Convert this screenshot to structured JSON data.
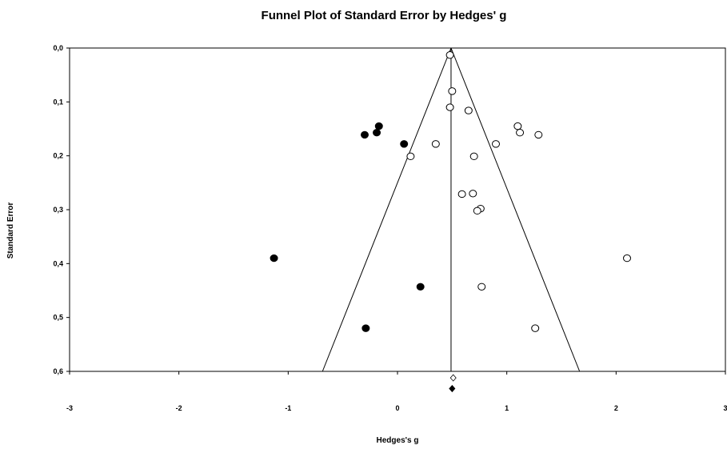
{
  "chart_data": {
    "type": "scatter",
    "title": "Funnel Plot of Standard Error by Hedges' g",
    "xlabel": "Hedges's g",
    "ylabel": "Standard Error",
    "xlim": [
      -3,
      3
    ],
    "ylim": [
      0.0,
      0.6
    ],
    "y_inverted": true,
    "x_ticks": [
      -3,
      -2,
      -1,
      0,
      1,
      2,
      3
    ],
    "x_tick_labels": [
      "-3",
      "-2",
      "-1",
      "0",
      "1",
      "2",
      "3"
    ],
    "y_ticks": [
      0.0,
      0.1,
      0.2,
      0.3,
      0.4,
      0.5,
      0.6
    ],
    "y_tick_labels": [
      "0,0",
      "0,1",
      "0,2",
      "0,3",
      "0,4",
      "0,5",
      "0,6"
    ],
    "grid": false,
    "summary_effect": 0.49,
    "funnel_multiplier": 1.96,
    "series": [
      {
        "marker": "open-circle",
        "points": [
          {
            "x": 0.48,
            "y": 0.013
          },
          {
            "x": 0.5,
            "y": 0.08
          },
          {
            "x": 0.48,
            "y": 0.11
          },
          {
            "x": 0.65,
            "y": 0.116
          },
          {
            "x": 1.1,
            "y": 0.145
          },
          {
            "x": 1.12,
            "y": 0.157
          },
          {
            "x": 1.29,
            "y": 0.161
          },
          {
            "x": 0.35,
            "y": 0.178
          },
          {
            "x": 0.9,
            "y": 0.178
          },
          {
            "x": 0.12,
            "y": 0.201
          },
          {
            "x": 0.7,
            "y": 0.201
          },
          {
            "x": 0.59,
            "y": 0.271
          },
          {
            "x": 0.69,
            "y": 0.27
          },
          {
            "x": 0.76,
            "y": 0.298
          },
          {
            "x": 0.73,
            "y": 0.302
          },
          {
            "x": 2.1,
            "y": 0.39
          },
          {
            "x": 0.77,
            "y": 0.443
          },
          {
            "x": 1.26,
            "y": 0.52
          }
        ]
      },
      {
        "marker": "filled-circle",
        "points": [
          {
            "x": -0.3,
            "y": 0.161
          },
          {
            "x": -0.17,
            "y": 0.145
          },
          {
            "x": -0.19,
            "y": 0.157
          },
          {
            "x": 0.06,
            "y": 0.178
          },
          {
            "x": -1.13,
            "y": 0.39
          },
          {
            "x": 0.21,
            "y": 0.443
          },
          {
            "x": -0.29,
            "y": 0.52
          }
        ]
      }
    ],
    "summary_markers": [
      {
        "marker": "open-diamond",
        "x": 0.51,
        "y": 0.612
      },
      {
        "marker": "filled-diamond",
        "x": 0.5,
        "y": 0.632
      }
    ]
  }
}
